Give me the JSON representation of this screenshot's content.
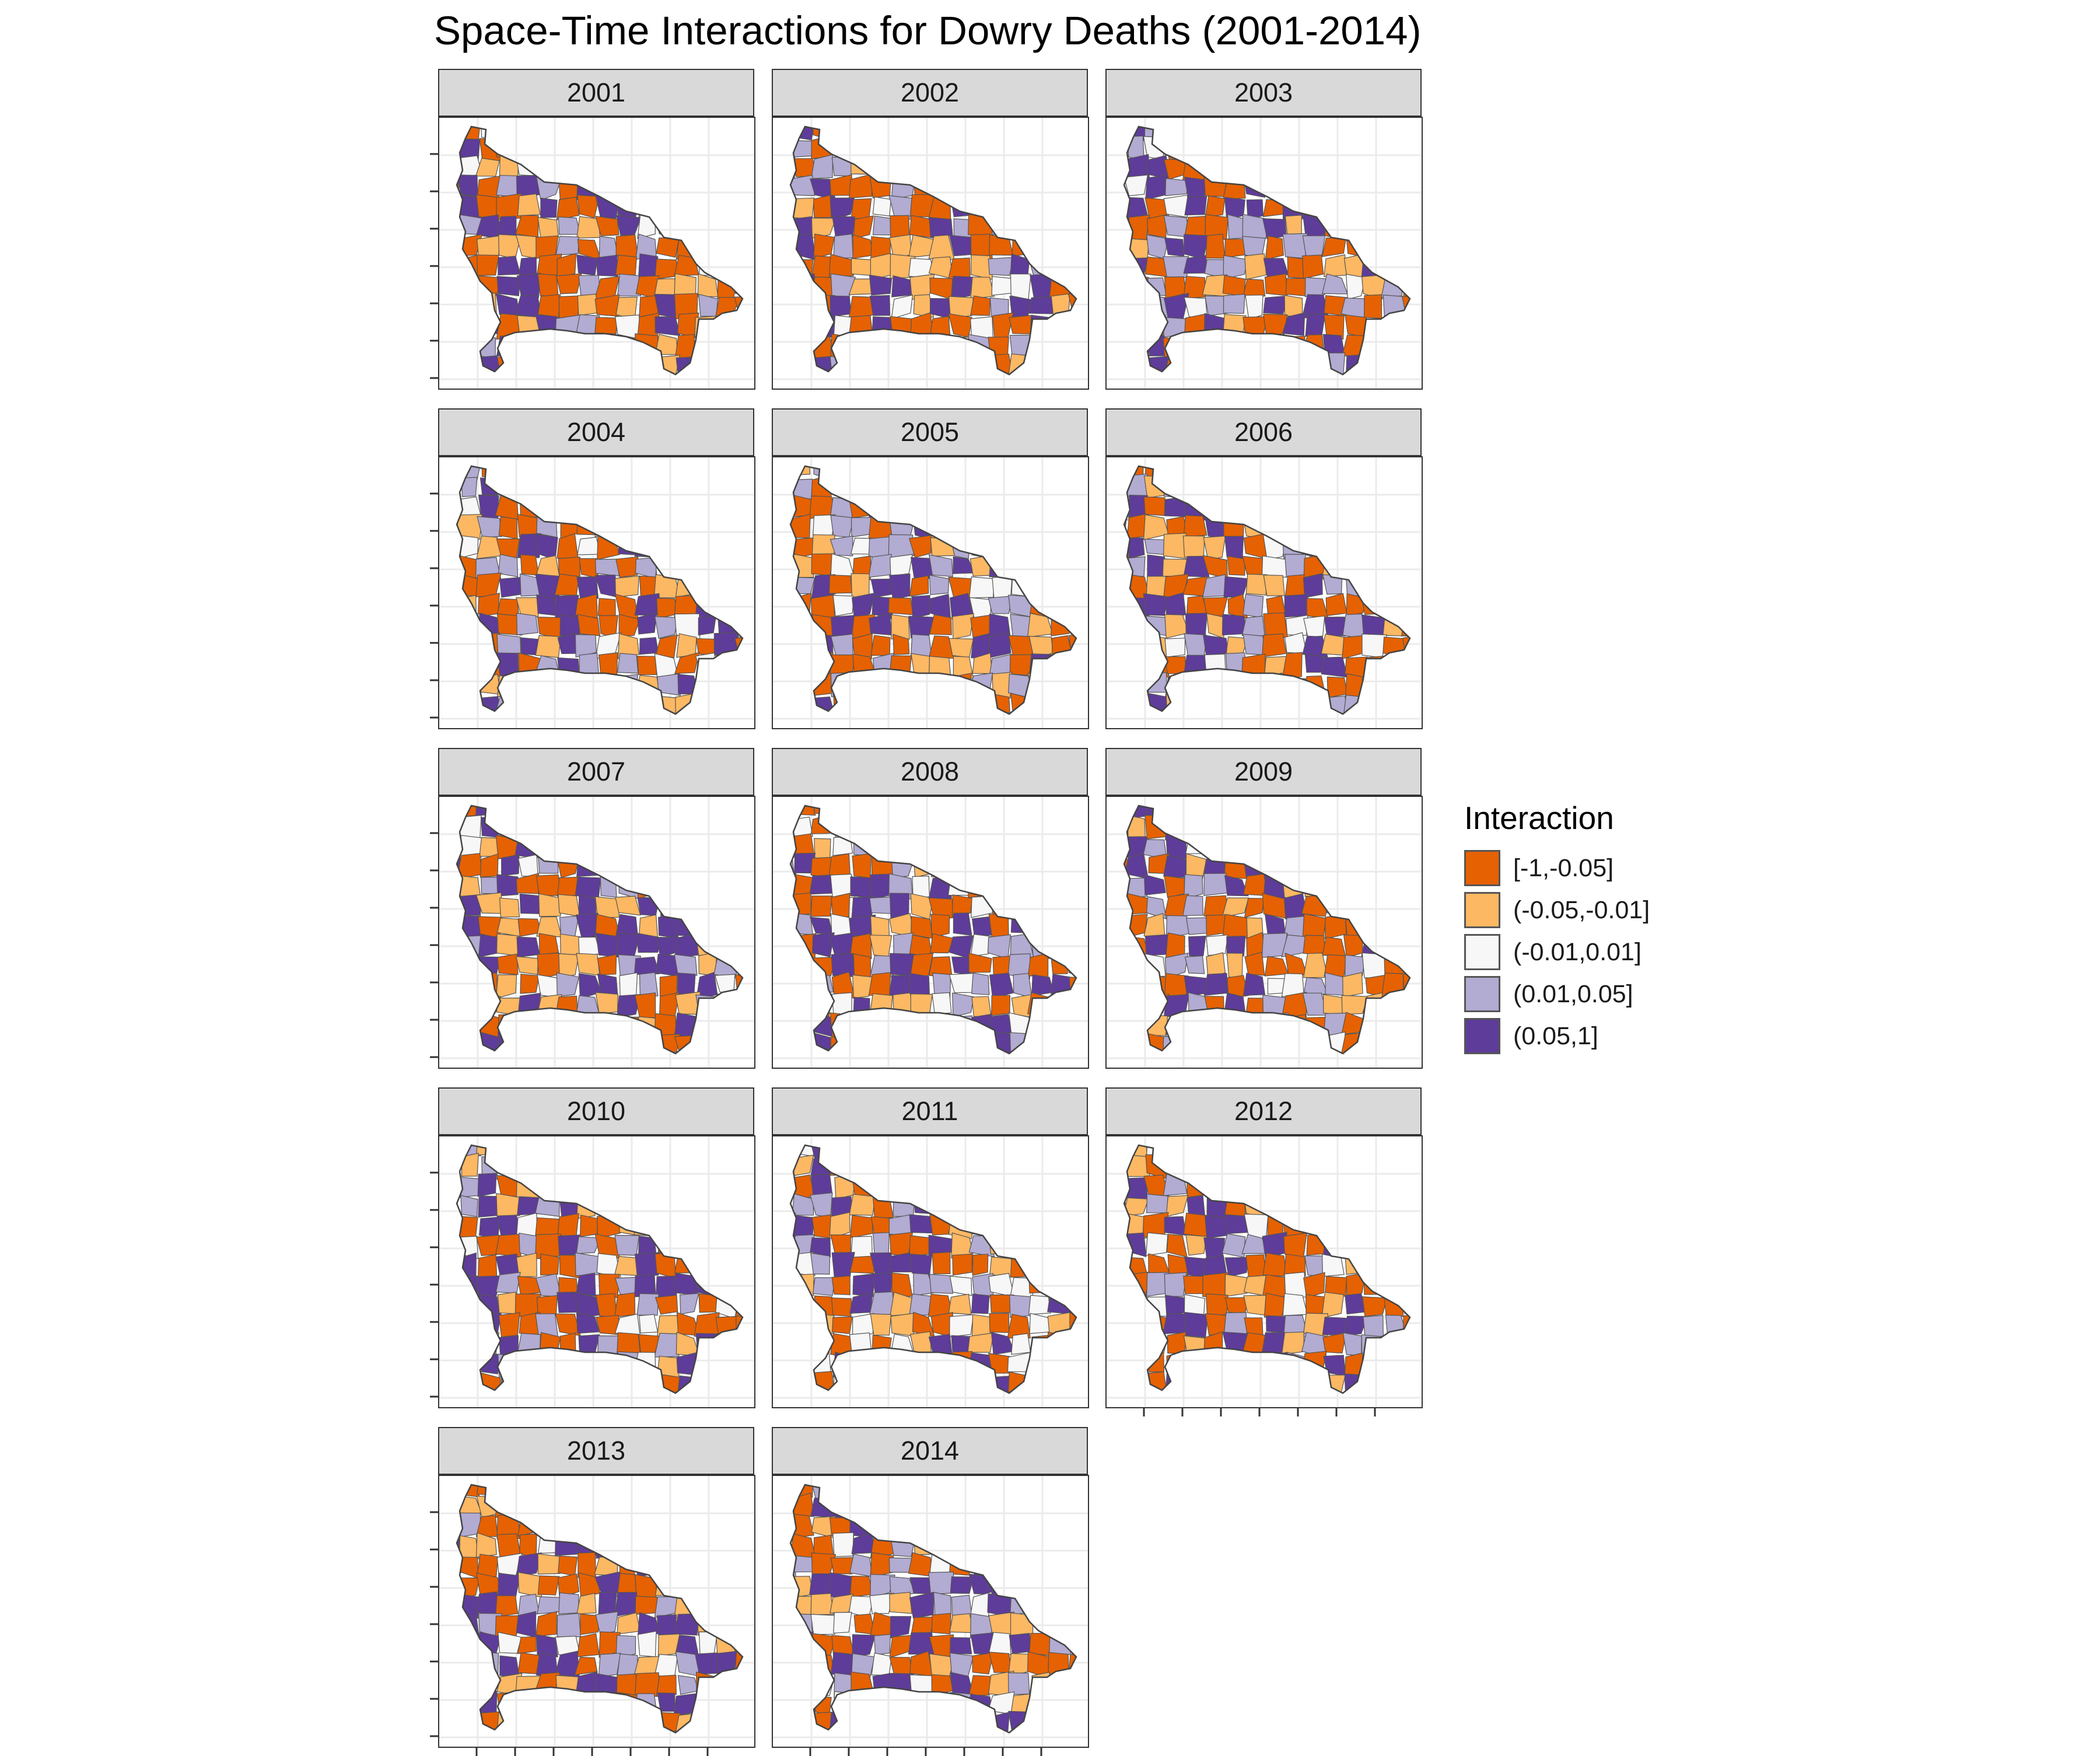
{
  "title": "Space-Time Interactions for Dowry Deaths (2001-2014)",
  "legend": {
    "title": "Interaction",
    "items": [
      {
        "label": "[-1,-0.05]",
        "color": "#e66101"
      },
      {
        "label": "(-0.05,-0.01]",
        "color": "#fdb863"
      },
      {
        "label": "(-0.01,0.01]",
        "color": "#f7f7f7"
      },
      {
        "label": "(0.01,0.05]",
        "color": "#b2abd2"
      },
      {
        "label": "(0.05,1]",
        "color": "#5e3c99"
      }
    ]
  },
  "panels": [
    {
      "year": "2001"
    },
    {
      "year": "2002"
    },
    {
      "year": "2003"
    },
    {
      "year": "2004"
    },
    {
      "year": "2005"
    },
    {
      "year": "2006"
    },
    {
      "year": "2007"
    },
    {
      "year": "2008"
    },
    {
      "year": "2009"
    },
    {
      "year": "2010"
    },
    {
      "year": "2011"
    },
    {
      "year": "2012"
    },
    {
      "year": "2013"
    },
    {
      "year": "2014"
    }
  ]
}
